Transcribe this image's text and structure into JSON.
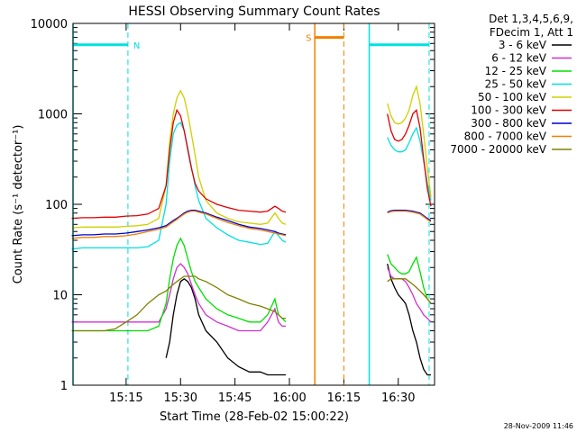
{
  "chart_data": {
    "type": "line",
    "title": "HESSI Observing Summary Count Rates",
    "xlabel": "Start Time (28-Feb-02 15:00:22)",
    "ylabel": "Count Rate (s⁻¹ detector⁻¹)",
    "y_scale": "log",
    "ylim": [
      1,
      10000
    ],
    "xlim": [
      "15:00:22",
      "16:40:00"
    ],
    "x_ticks": [
      "15:15",
      "15:30",
      "15:45",
      "16:00",
      "16:15",
      "16:30"
    ],
    "y_ticks": [
      "1",
      "10",
      "100",
      "1000",
      "10000"
    ],
    "legend": {
      "placement": "right",
      "header": [
        "Det 1,3,4,5,6,9,",
        "FDecim 1, Att 1"
      ]
    },
    "annotations": {
      "night": "N",
      "saa": "S"
    },
    "footer": "28-Nov-2009 11:46",
    "x_minutes": [
      0,
      3,
      6,
      9,
      12,
      15,
      18,
      21,
      24,
      26,
      27,
      28,
      29,
      30,
      31,
      32,
      33,
      34,
      35,
      37,
      40,
      43,
      46,
      49,
      52,
      54,
      56,
      57,
      58,
      59,
      60,
      61,
      62,
      63,
      64,
      70,
      71,
      72,
      73,
      74,
      76,
      77,
      78,
      79,
      80,
      81,
      82,
      83,
      84,
      85,
      86,
      87,
      88,
      89,
      90,
      91,
      92,
      93,
      94,
      95,
      96,
      97,
      98,
      99
    ],
    "series": [
      {
        "name": "3 - 6 keV",
        "color": "#000000",
        "values": [
          null,
          null,
          null,
          null,
          null,
          null,
          null,
          null,
          null,
          2,
          3,
          6,
          10,
          14,
          15,
          14,
          12,
          9,
          6,
          4,
          3,
          2,
          1.6,
          1.4,
          1.4,
          1.3,
          1.3,
          1.3,
          1.3,
          1.3,
          null,
          null,
          null,
          null,
          null,
          null,
          null,
          null,
          null,
          null,
          null,
          null,
          null,
          null,
          null,
          null,
          null,
          null,
          null,
          null,
          null,
          22,
          15,
          12,
          10,
          9,
          8,
          6,
          4,
          3,
          2,
          1.5,
          1.3,
          1.3
        ]
      },
      {
        "name": "6 - 12 keV",
        "color": "#d030d0",
        "values": [
          5,
          5,
          5,
          5,
          5,
          5,
          5,
          5,
          5,
          7,
          10,
          15,
          20,
          22,
          20,
          17,
          13,
          10,
          8,
          6,
          5,
          4.5,
          4,
          4,
          4,
          5,
          7,
          5,
          4.5,
          4.5,
          null,
          null,
          null,
          null,
          null,
          null,
          null,
          null,
          null,
          null,
          null,
          null,
          null,
          null,
          null,
          null,
          null,
          null,
          null,
          null,
          null,
          20,
          16,
          15,
          15,
          15,
          14,
          12,
          10,
          8,
          7,
          6,
          5.5,
          5
        ]
      },
      {
        "name": "12 - 25 keV",
        "color": "#00e000",
        "values": [
          4,
          4,
          4,
          4,
          4,
          4,
          4,
          4,
          4.5,
          8,
          15,
          25,
          35,
          42,
          35,
          25,
          18,
          14,
          12,
          9,
          7,
          6,
          5.5,
          5,
          5,
          6,
          9,
          6,
          5.5,
          5,
          null,
          null,
          null,
          null,
          null,
          null,
          null,
          null,
          null,
          null,
          null,
          null,
          null,
          null,
          null,
          null,
          null,
          null,
          null,
          null,
          null,
          28,
          22,
          20,
          18,
          17,
          17,
          18,
          22,
          26,
          18,
          12,
          9,
          8
        ]
      },
      {
        "name": "25 - 50 keV",
        "color": "#00e0e0",
        "values": [
          32,
          33,
          33,
          33,
          33,
          33,
          33,
          34,
          40,
          100,
          300,
          600,
          750,
          800,
          650,
          420,
          260,
          160,
          110,
          70,
          55,
          46,
          40,
          38,
          36,
          37,
          50,
          45,
          40,
          38,
          null,
          null,
          null,
          null,
          null,
          null,
          null,
          null,
          null,
          null,
          null,
          null,
          null,
          null,
          null,
          null,
          null,
          null,
          null,
          null,
          null,
          550,
          450,
          400,
          380,
          380,
          400,
          480,
          600,
          700,
          500,
          300,
          170,
          110
        ]
      },
      {
        "name": "50 - 100 keV",
        "color": "#d0d000",
        "values": [
          55,
          56,
          56,
          56,
          56,
          57,
          58,
          60,
          70,
          160,
          500,
          1000,
          1500,
          1800,
          1500,
          1000,
          600,
          350,
          200,
          110,
          80,
          70,
          64,
          62,
          60,
          62,
          80,
          70,
          62,
          60,
          null,
          null,
          null,
          null,
          null,
          null,
          null,
          null,
          null,
          null,
          null,
          null,
          null,
          null,
          null,
          null,
          null,
          null,
          null,
          null,
          null,
          1300,
          950,
          800,
          770,
          800,
          900,
          1100,
          1600,
          2000,
          1300,
          600,
          250,
          120
        ]
      },
      {
        "name": "100 - 300 keV",
        "color": "#e00000",
        "values": [
          70,
          71,
          71,
          72,
          72,
          74,
          75,
          78,
          90,
          160,
          400,
          800,
          1100,
          950,
          650,
          400,
          250,
          170,
          140,
          115,
          100,
          92,
          86,
          84,
          82,
          84,
          95,
          90,
          84,
          82,
          null,
          null,
          null,
          null,
          null,
          null,
          null,
          null,
          null,
          null,
          null,
          null,
          null,
          null,
          null,
          null,
          null,
          null,
          null,
          null,
          null,
          1000,
          650,
          520,
          500,
          520,
          600,
          750,
          1000,
          1100,
          700,
          320,
          150,
          95
        ]
      },
      {
        "name": "300 - 800 keV",
        "color": "#0000d0",
        "values": [
          45,
          46,
          46,
          47,
          47,
          48,
          50,
          52,
          55,
          58,
          62,
          66,
          70,
          75,
          80,
          84,
          86,
          86,
          84,
          80,
          72,
          66,
          60,
          56,
          54,
          52,
          50,
          48,
          47,
          46,
          null,
          null,
          null,
          null,
          null,
          null,
          null,
          null,
          null,
          null,
          null,
          null,
          null,
          null,
          null,
          null,
          null,
          null,
          null,
          null,
          null,
          82,
          85,
          86,
          86,
          86,
          86,
          85,
          84,
          82,
          80,
          75,
          70,
          66
        ]
      },
      {
        "name": "800 - 7000 keV",
        "color": "#f08000",
        "values": [
          42,
          43,
          43,
          44,
          44,
          45,
          47,
          50,
          53,
          56,
          60,
          64,
          68,
          73,
          78,
          82,
          84,
          84,
          82,
          78,
          70,
          63,
          58,
          54,
          52,
          50,
          48,
          47,
          46,
          45,
          null,
          null,
          null,
          null,
          null,
          null,
          null,
          null,
          null,
          null,
          null,
          null,
          null,
          null,
          null,
          null,
          null,
          null,
          null,
          null,
          null,
          80,
          83,
          84,
          84,
          84,
          84,
          83,
          82,
          80,
          78,
          73,
          68,
          64
        ]
      },
      {
        "name": "7000 - 20000 keV",
        "color": "#808000",
        "values": [
          4,
          4,
          4,
          4,
          4.2,
          5,
          6,
          8,
          10,
          11,
          12,
          13,
          14,
          15,
          16,
          16,
          16,
          16,
          15,
          14,
          12,
          10,
          9,
          8,
          7.5,
          7,
          6.5,
          6,
          5.5,
          5.5,
          null,
          null,
          null,
          null,
          null,
          null,
          null,
          null,
          null,
          null,
          null,
          null,
          null,
          null,
          null,
          null,
          null,
          null,
          null,
          null,
          null,
          14,
          15,
          15,
          15,
          15,
          15,
          14,
          13,
          12,
          11,
          10,
          9,
          8
        ]
      }
    ]
  }
}
